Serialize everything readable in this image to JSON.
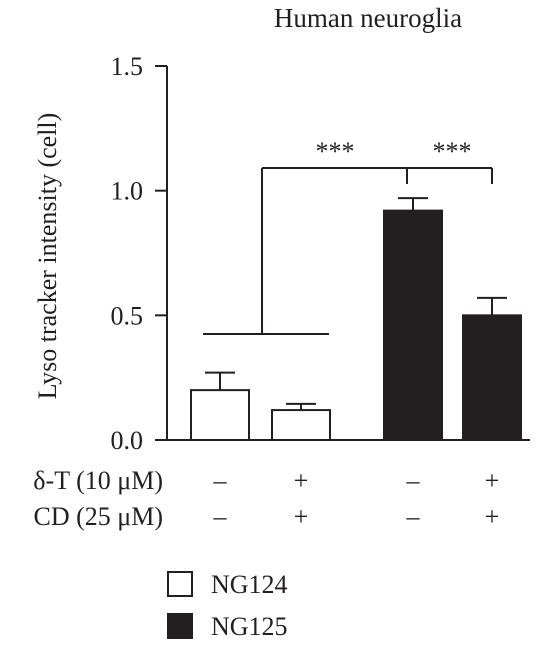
{
  "chart_data": {
    "type": "bar",
    "title": "Human neuroglia",
    "ylabel": "Lyso tracker intensity (cell)",
    "xlabel": "",
    "ylim": [
      0,
      1.5
    ],
    "yticks": [
      "0.0",
      "0.5",
      "1.0",
      "1.5"
    ],
    "bars": [
      {
        "group": "NG124",
        "value": 0.2,
        "error": 0.07,
        "fill": "#ffffff"
      },
      {
        "group": "NG124",
        "value": 0.12,
        "error": 0.025,
        "fill": "#ffffff"
      },
      {
        "group": "NG125",
        "value": 0.92,
        "error": 0.05,
        "fill": "#231f20"
      },
      {
        "group": "NG125",
        "value": 0.5,
        "error": 0.07,
        "fill": "#231f20"
      }
    ],
    "conditions": [
      {
        "label": "δ-T (10 μM)",
        "values": [
          "–",
          "+",
          "–",
          "+"
        ]
      },
      {
        "label": "CD (25 μM)",
        "values": [
          "–",
          "+",
          "–",
          "+"
        ]
      }
    ],
    "significance": [
      {
        "label": "***",
        "from": "NG124 group",
        "to": "bar 3"
      },
      {
        "label": "***",
        "from": "bar 3",
        "to": "bar 4"
      }
    ],
    "legend": [
      {
        "label": "NG124",
        "fill": "#ffffff"
      },
      {
        "label": "NG125",
        "fill": "#231f20"
      }
    ],
    "legend_position": "bottom-left"
  }
}
